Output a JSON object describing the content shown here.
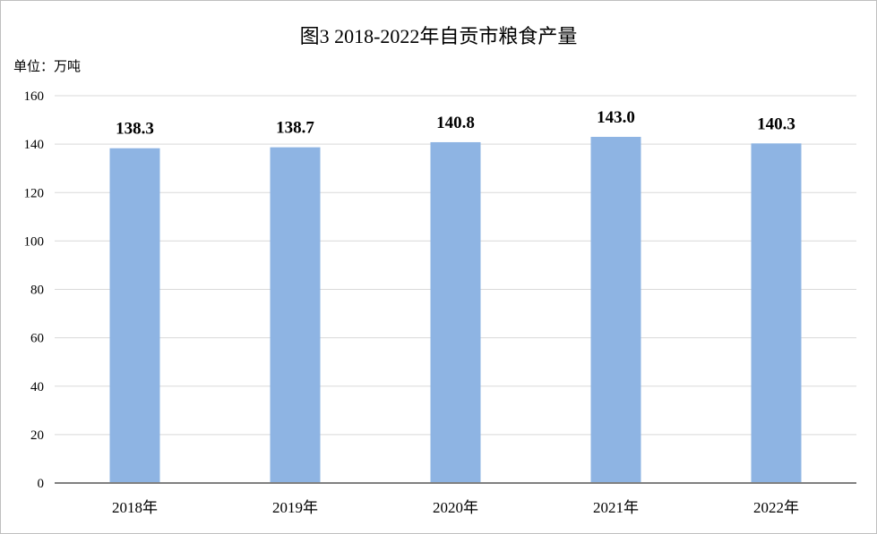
{
  "chart_data": {
    "type": "bar",
    "title": "图3  2018-2022年自贡市粮食产量",
    "unit_label": "单位：万吨",
    "categories": [
      "2018年",
      "2019年",
      "2020年",
      "2021年",
      "2022年"
    ],
    "values": [
      138.3,
      138.7,
      140.8,
      143.0,
      140.3
    ],
    "value_labels": [
      "138.3",
      "138.7",
      "140.8",
      "143.0",
      "140.3"
    ],
    "ylim": [
      0,
      160
    ],
    "yticks": [
      "0",
      "20",
      "40",
      "60",
      "80",
      "100",
      "120",
      "140",
      "160"
    ],
    "grid": true,
    "bar_color": "#8eb4e3",
    "grid_color": "#d9d9d9",
    "axis_color": "#808080"
  }
}
